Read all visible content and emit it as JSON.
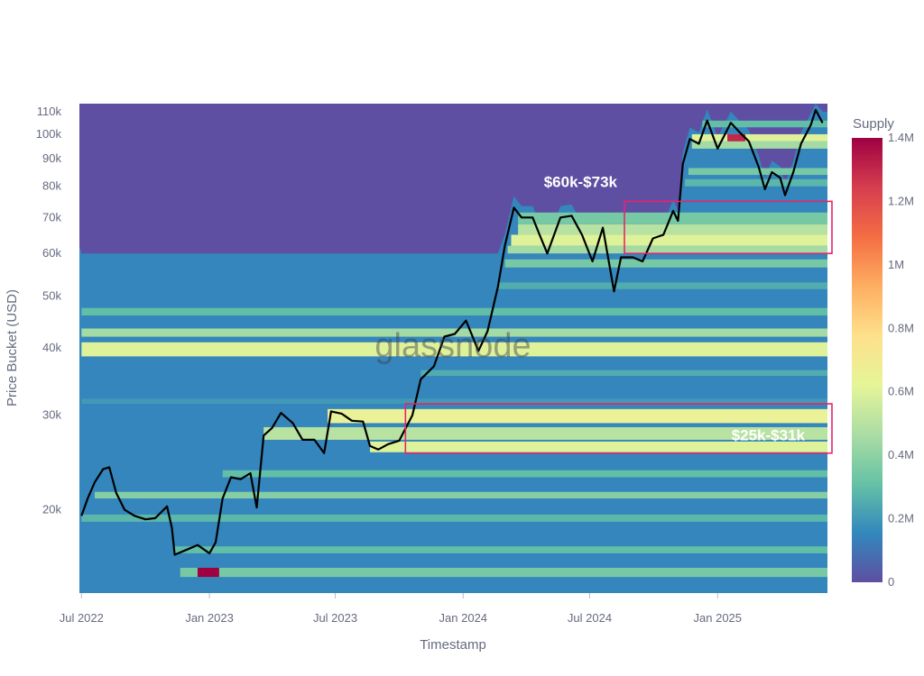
{
  "chart_data": {
    "type": "heatmap",
    "title": "",
    "xlabel": "Timestamp",
    "ylabel": "Price Bucket (USD)",
    "watermark": "glassnode",
    "y_scale": "log",
    "ylim": [
      14000,
      114000
    ],
    "xlim": [
      "2022-06-28",
      "2025-06-08"
    ],
    "x_ticks": [
      {
        "date": "2022-07-01",
        "label": "Jul 2022"
      },
      {
        "date": "2023-01-01",
        "label": "Jan 2023"
      },
      {
        "date": "2023-07-01",
        "label": "Jul 2023"
      },
      {
        "date": "2024-01-01",
        "label": "Jan 2024"
      },
      {
        "date": "2024-07-01",
        "label": "Jul 2024"
      },
      {
        "date": "2025-01-01",
        "label": "Jan 2025"
      }
    ],
    "y_ticks": [
      {
        "value": 20000,
        "label": "20k"
      },
      {
        "value": 30000,
        "label": "30k"
      },
      {
        "value": 40000,
        "label": "40k"
      },
      {
        "value": 50000,
        "label": "50k"
      },
      {
        "value": 60000,
        "label": "60k"
      },
      {
        "value": 70000,
        "label": "70k"
      },
      {
        "value": 80000,
        "label": "80k"
      },
      {
        "value": 90000,
        "label": "90k"
      },
      {
        "value": 100000,
        "label": "100k"
      },
      {
        "value": 110000,
        "label": "110k"
      }
    ],
    "colorbar": {
      "title": "Supply",
      "min": 0,
      "max": 1400000,
      "ticks": [
        {
          "value": 0,
          "label": "0"
        },
        {
          "value": 200000,
          "label": "0.2M"
        },
        {
          "value": 400000,
          "label": "0.4M"
        },
        {
          "value": 600000,
          "label": "0.6M"
        },
        {
          "value": 800000,
          "label": "0.8M"
        },
        {
          "value": 1000000,
          "label": "1M"
        },
        {
          "value": 1200000,
          "label": "1.2M"
        },
        {
          "value": 1400000,
          "label": "1.4M"
        }
      ],
      "colors": [
        "#5e4fa2",
        "#3288bd",
        "#66c2a5",
        "#abdda4",
        "#e6f598",
        "#fee08b",
        "#fdae61",
        "#f46d43",
        "#d53e4f",
        "#9e0142"
      ]
    },
    "bands": [
      {
        "low": 15000,
        "high": 15600,
        "start": "2022-11-20",
        "value": 350000,
        "peak": 1400000,
        "peak_start": "2022-12-15",
        "peak_end": "2023-01-15"
      },
      {
        "low": 16600,
        "high": 17100,
        "start": "2022-11-10",
        "value": 300000
      },
      {
        "low": 19000,
        "high": 19600,
        "start": "2022-07-01",
        "value": 280000
      },
      {
        "low": 21000,
        "high": 21600,
        "start": "2022-07-20",
        "value": 380000
      },
      {
        "low": 23000,
        "high": 23700,
        "start": "2023-01-20",
        "value": 300000
      },
      {
        "low": 25600,
        "high": 26800,
        "start": "2023-08-20",
        "value": 600000
      },
      {
        "low": 27000,
        "high": 28500,
        "start": "2023-03-20",
        "value": 500000
      },
      {
        "low": 29000,
        "high": 30800,
        "start": "2023-06-20",
        "value": 650000
      },
      {
        "low": 31500,
        "high": 32200,
        "start": "2022-07-01",
        "value": 200000
      },
      {
        "low": 35500,
        "high": 36400,
        "start": "2023-11-01",
        "value": 250000
      },
      {
        "low": 38600,
        "high": 41000,
        "start": "2022-07-01",
        "value": 600000
      },
      {
        "low": 42000,
        "high": 43500,
        "start": "2022-07-01",
        "value": 450000
      },
      {
        "low": 46000,
        "high": 47500,
        "start": "2022-07-01",
        "value": 300000
      },
      {
        "low": 51500,
        "high": 53000,
        "start": "2024-02-20",
        "value": 250000
      },
      {
        "low": 56500,
        "high": 58500,
        "start": "2024-03-01",
        "value": 350000
      },
      {
        "low": 60000,
        "high": 62000,
        "start": "2024-03-05",
        "value": 450000
      },
      {
        "low": 62000,
        "high": 65000,
        "start": "2024-03-10",
        "value": 600000
      },
      {
        "low": 65000,
        "high": 68000,
        "start": "2024-03-20",
        "value": 500000
      },
      {
        "low": 68000,
        "high": 71500,
        "start": "2024-03-20",
        "value": 350000
      },
      {
        "low": 80000,
        "high": 82500,
        "start": "2024-11-15",
        "value": 280000
      },
      {
        "low": 84000,
        "high": 86500,
        "start": "2024-11-20",
        "value": 350000
      },
      {
        "low": 94000,
        "high": 97000,
        "start": "2024-11-25",
        "value": 450000
      },
      {
        "low": 97000,
        "high": 100000,
        "start": "2024-11-25",
        "value": 600000,
        "peak": 1300000,
        "peak_start": "2025-01-15",
        "peak_end": "2025-02-10"
      },
      {
        "low": 103000,
        "high": 106000,
        "start": "2024-12-10",
        "value": 300000
      }
    ],
    "series": [
      {
        "type": "line",
        "color": "#000000",
        "x": [
          "2022-07-01",
          "2022-07-10",
          "2022-07-20",
          "2022-08-01",
          "2022-08-10",
          "2022-08-20",
          "2022-09-01",
          "2022-09-15",
          "2022-10-01",
          "2022-10-15",
          "2022-11-01",
          "2022-11-08",
          "2022-11-12",
          "2022-12-01",
          "2022-12-15",
          "2023-01-01",
          "2023-01-10",
          "2023-01-20",
          "2023-02-01",
          "2023-02-15",
          "2023-03-01",
          "2023-03-10",
          "2023-03-20",
          "2023-04-01",
          "2023-04-14",
          "2023-05-01",
          "2023-05-15",
          "2023-06-01",
          "2023-06-15",
          "2023-06-25",
          "2023-07-10",
          "2023-07-25",
          "2023-08-10",
          "2023-08-20",
          "2023-09-01",
          "2023-09-15",
          "2023-10-01",
          "2023-10-20",
          "2023-11-01",
          "2023-11-20",
          "2023-12-05",
          "2023-12-20",
          "2024-01-05",
          "2024-01-12",
          "2024-01-23",
          "2024-02-05",
          "2024-02-20",
          "2024-03-01",
          "2024-03-14",
          "2024-03-25",
          "2024-04-10",
          "2024-04-20",
          "2024-05-01",
          "2024-05-20",
          "2024-06-05",
          "2024-06-20",
          "2024-07-05",
          "2024-07-20",
          "2024-08-05",
          "2024-08-15",
          "2024-09-01",
          "2024-09-15",
          "2024-09-30",
          "2024-10-15",
          "2024-10-29",
          "2024-11-05",
          "2024-11-12",
          "2024-11-22",
          "2024-12-05",
          "2024-12-17",
          "2025-01-01",
          "2025-01-20",
          "2025-02-01",
          "2025-02-15",
          "2025-03-01",
          "2025-03-10",
          "2025-03-20",
          "2025-04-01",
          "2025-04-08",
          "2025-04-20",
          "2025-05-01",
          "2025-05-15",
          "2025-05-22",
          "2025-06-01"
        ],
        "y": [
          19500,
          21000,
          22500,
          23800,
          24000,
          21500,
          20000,
          19500,
          19200,
          19300,
          20300,
          18500,
          16500,
          16900,
          17200,
          16600,
          17400,
          21000,
          23000,
          22800,
          23400,
          20200,
          27500,
          28400,
          30300,
          29000,
          27000,
          27000,
          25500,
          30500,
          30200,
          29300,
          29200,
          26300,
          25900,
          26500,
          26900,
          30000,
          35000,
          37000,
          42000,
          42500,
          45000,
          42800,
          39500,
          43000,
          52000,
          62000,
          73000,
          70000,
          70000,
          65000,
          60000,
          70000,
          70500,
          65000,
          58000,
          67000,
          51000,
          59000,
          59000,
          58000,
          64000,
          65000,
          72000,
          69000,
          88000,
          98000,
          96000,
          106000,
          94000,
          105000,
          101000,
          97000,
          87000,
          79000,
          85000,
          83000,
          77000,
          85000,
          96000,
          104000,
          111000,
          105000
        ]
      }
    ],
    "annotations": [
      {
        "text": "$60k-$73k",
        "x0": "2024-08-20",
        "x1": "2025-06-15",
        "y0": 60000,
        "y1": 75000
      },
      {
        "text": "$25k-$31k",
        "x0": "2023-10-10",
        "x1": "2025-06-15",
        "y0": 25500,
        "y1": 31500
      }
    ]
  }
}
